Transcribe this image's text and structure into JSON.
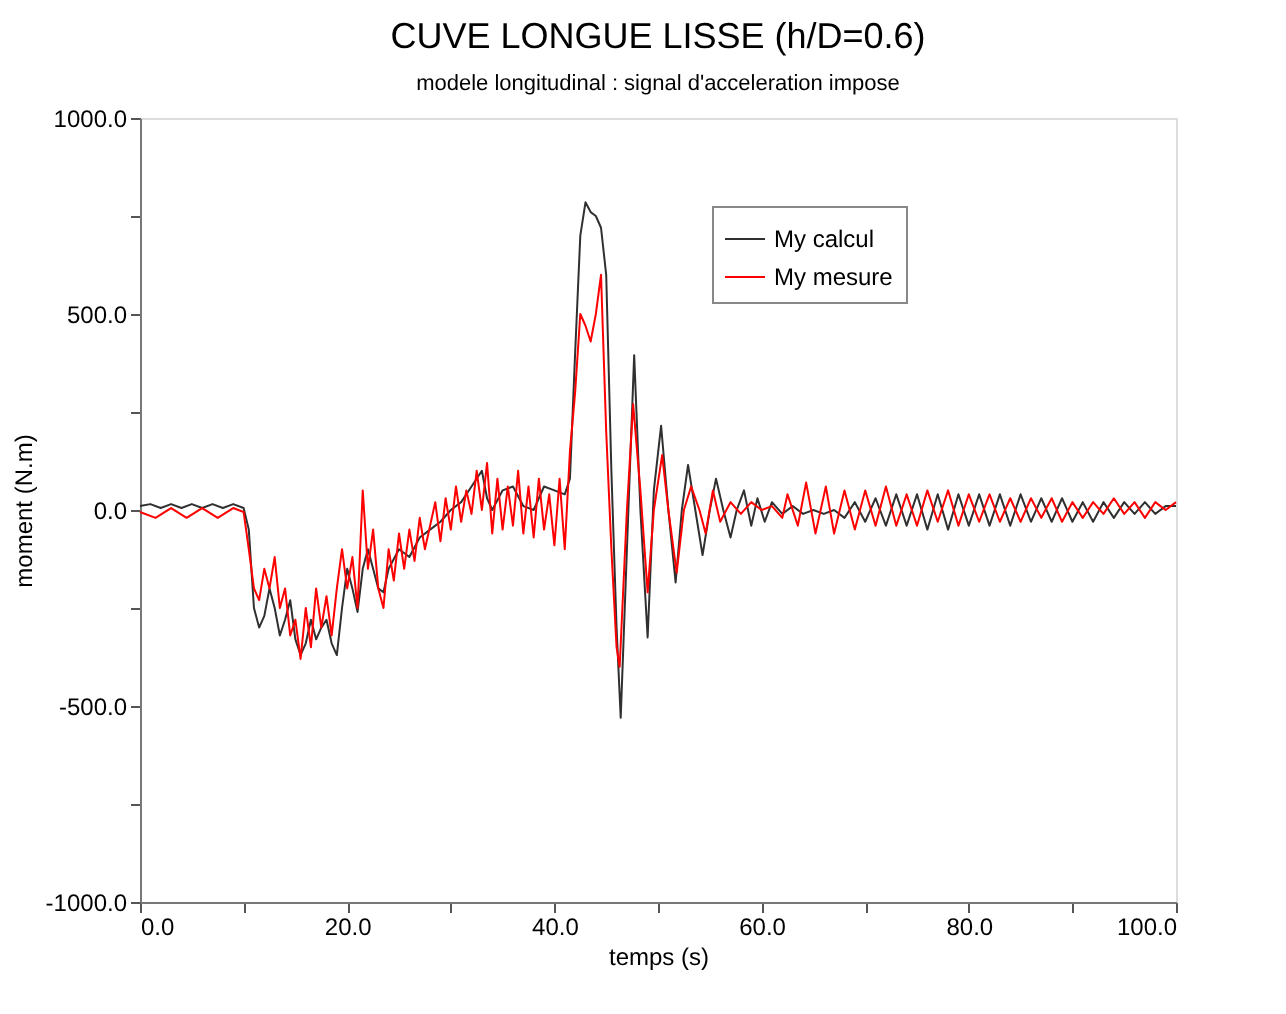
{
  "chart_data": {
    "type": "line",
    "title": "CUVE LONGUE LISSE (h/D=0.6)",
    "subtitle": "modele longitudinal : signal d'acceleration impose",
    "xlabel": "temps (s)",
    "ylabel": "moment (N.m)",
    "xlim": [
      0,
      100
    ],
    "ylim": [
      -1000,
      1000
    ],
    "xticks": [
      {
        "value": 0,
        "label": "0.0"
      },
      {
        "value": 10,
        "label": null
      },
      {
        "value": 20,
        "label": "20.0"
      },
      {
        "value": 30,
        "label": null
      },
      {
        "value": 40,
        "label": "40.0"
      },
      {
        "value": 50,
        "label": null
      },
      {
        "value": 60,
        "label": "60.0"
      },
      {
        "value": 70,
        "label": null
      },
      {
        "value": 80,
        "label": "80.0"
      },
      {
        "value": 90,
        "label": null
      },
      {
        "value": 100,
        "label": "100.0"
      }
    ],
    "yticks": [
      {
        "value": -1000,
        "label": "-1000.0"
      },
      {
        "value": -750,
        "label": null
      },
      {
        "value": -500,
        "label": "-500.0"
      },
      {
        "value": -250,
        "label": null
      },
      {
        "value": 0,
        "label": "0.0"
      },
      {
        "value": 250,
        "label": null
      },
      {
        "value": 500,
        "label": "500.0"
      },
      {
        "value": 750,
        "label": null
      },
      {
        "value": 1000,
        "label": "1000.0"
      }
    ],
    "grid": false,
    "legend": "top right",
    "marker": "none",
    "line_style": "solid",
    "series": [
      {
        "name": "My calcul",
        "color": "#303030",
        "x": [
          0,
          1,
          2,
          3,
          4,
          5,
          6,
          7,
          8,
          9,
          10,
          10.5,
          11,
          11.5,
          12,
          12.5,
          13,
          13.5,
          14,
          14.5,
          15,
          15.5,
          16,
          16.5,
          17,
          17.5,
          18,
          18.5,
          19,
          19.5,
          20,
          20.5,
          21,
          21.5,
          22,
          22.5,
          23,
          23.5,
          24,
          25,
          26,
          27,
          28,
          29,
          30,
          31,
          32,
          33,
          33.5,
          34,
          35,
          36,
          37,
          38,
          39,
          40,
          41,
          41.5,
          42,
          42.5,
          43,
          43.5,
          44,
          44.5,
          45,
          45.5,
          46,
          46.4,
          47,
          47.7,
          48.3,
          49,
          49.6,
          50.3,
          51,
          51.7,
          52.3,
          52.9,
          53.6,
          54.3,
          55,
          55.6,
          56.3,
          57,
          57.6,
          58.3,
          59,
          59.6,
          60.3,
          61,
          62,
          63,
          64,
          65,
          66,
          67,
          68,
          69,
          70,
          71,
          72,
          73,
          74,
          75,
          76,
          77,
          78,
          79,
          80,
          81,
          82,
          83,
          84,
          85,
          86,
          87,
          88,
          89,
          90,
          91,
          92,
          93,
          94,
          95,
          96,
          97,
          98,
          99,
          100
        ],
        "values": [
          10,
          15,
          5,
          15,
          5,
          15,
          5,
          15,
          5,
          15,
          5,
          -50,
          -250,
          -300,
          -270,
          -200,
          -250,
          -320,
          -280,
          -230,
          -330,
          -370,
          -340,
          -280,
          -330,
          -300,
          -280,
          -340,
          -370,
          -250,
          -150,
          -200,
          -260,
          -150,
          -100,
          -150,
          -200,
          -210,
          -150,
          -100,
          -120,
          -70,
          -50,
          -30,
          0,
          20,
          60,
          100,
          30,
          0,
          50,
          60,
          10,
          0,
          60,
          50,
          40,
          80,
          400,
          700,
          785,
          760,
          750,
          720,
          600,
          100,
          -300,
          -530,
          -100,
          395,
          0,
          -325,
          50,
          215,
          0,
          -185,
          0,
          115,
          0,
          -115,
          0,
          80,
          0,
          -70,
          0,
          50,
          -40,
          30,
          -30,
          20,
          -10,
          10,
          -10,
          0,
          -10,
          0,
          -20,
          20,
          -30,
          30,
          -40,
          40,
          -40,
          40,
          -50,
          40,
          -50,
          40,
          -40,
          40,
          -40,
          40,
          -40,
          40,
          -30,
          30,
          -30,
          30,
          -30,
          20,
          -30,
          20,
          -20,
          20,
          -10,
          20,
          -10,
          10,
          10
        ]
      },
      {
        "name": "My mesure",
        "color": "#ff0000",
        "x": [
          0,
          1.5,
          3,
          4.5,
          6,
          7.5,
          9,
          10,
          10.5,
          11,
          11.5,
          12,
          12.5,
          13,
          13.5,
          14,
          14.5,
          15,
          15.5,
          16,
          16.5,
          17,
          17.5,
          18,
          18.5,
          19,
          19.5,
          20,
          20.5,
          21,
          21.5,
          22,
          22.5,
          23,
          23.5,
          24,
          24.5,
          25,
          25.5,
          26,
          26.5,
          27,
          27.5,
          28,
          28.5,
          29,
          29.5,
          30,
          30.5,
          31,
          31.5,
          32,
          32.5,
          33,
          33.5,
          34,
          34.5,
          35,
          35.5,
          36,
          36.5,
          37,
          37.5,
          38,
          38.5,
          39,
          39.5,
          40,
          40.5,
          41,
          41.5,
          42,
          42.5,
          43,
          43.5,
          44,
          44.5,
          45,
          45.5,
          46,
          46.3,
          47,
          47.6,
          48.3,
          49,
          49.6,
          50.4,
          51,
          51.8,
          52.5,
          53.2,
          54,
          54.6,
          55.3,
          56,
          57,
          58,
          59,
          60,
          61,
          62,
          62.5,
          63.5,
          64.3,
          65.2,
          66.2,
          67,
          68,
          69,
          70,
          71,
          72,
          73,
          74,
          75,
          76,
          77,
          78,
          79,
          80,
          81,
          82,
          83,
          84,
          85,
          86,
          87,
          88,
          89,
          90,
          91,
          92,
          93,
          94,
          95,
          96,
          97,
          98,
          99,
          100
        ],
        "values": [
          -5,
          -20,
          5,
          -20,
          5,
          -20,
          5,
          -5,
          -100,
          -200,
          -230,
          -150,
          -200,
          -120,
          -250,
          -200,
          -320,
          -280,
          -380,
          -250,
          -350,
          -200,
          -300,
          -220,
          -320,
          -200,
          -100,
          -200,
          -120,
          -250,
          50,
          -150,
          -50,
          -200,
          -250,
          -100,
          -180,
          -60,
          -150,
          -50,
          -130,
          -20,
          -100,
          -40,
          20,
          -80,
          30,
          -50,
          60,
          -30,
          50,
          -10,
          100,
          0,
          120,
          -60,
          80,
          -50,
          60,
          -40,
          100,
          -60,
          60,
          -70,
          80,
          -50,
          40,
          -90,
          80,
          -100,
          150,
          300,
          500,
          470,
          430,
          500,
          600,
          200,
          -100,
          -350,
          -400,
          0,
          270,
          50,
          -210,
          0,
          140,
          0,
          -160,
          0,
          60,
          0,
          -60,
          50,
          -30,
          20,
          -10,
          20,
          0,
          10,
          -20,
          40,
          -40,
          70,
          -60,
          60,
          -60,
          50,
          -50,
          50,
          -40,
          60,
          -40,
          40,
          -40,
          50,
          -30,
          50,
          -40,
          40,
          -30,
          40,
          -30,
          30,
          -30,
          30,
          -20,
          30,
          -30,
          20,
          -20,
          20,
          -10,
          30,
          -10,
          20,
          -20,
          20,
          0,
          20
        ]
      }
    ]
  }
}
